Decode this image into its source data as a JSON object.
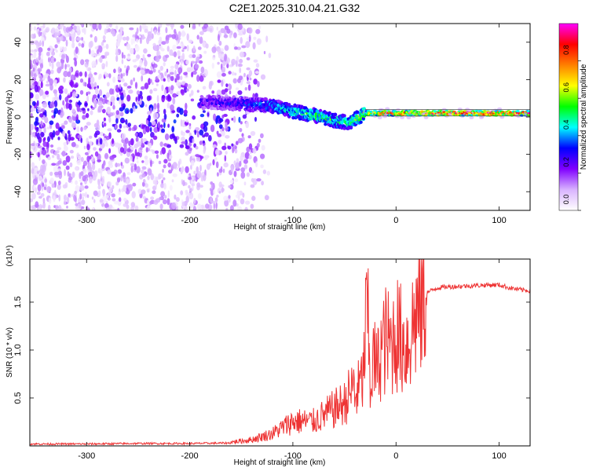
{
  "title": "C2E1.2025.310.04.21.G32",
  "chart_data": [
    {
      "type": "heatmap",
      "xlabel": "Height of straight line (km)",
      "ylabel": "Frequency (Hz)",
      "xlim": [
        -355,
        130
      ],
      "ylim": [
        -50,
        50
      ],
      "xticks": [
        -300,
        -200,
        -100,
        0,
        100
      ],
      "yticks": [
        -40,
        -20,
        0,
        20,
        40
      ],
      "grid": false,
      "colorbar": {
        "label": "Normalized spectral amplitude",
        "range": [
          0.0,
          1.0
        ],
        "ticks": [
          "0.0",
          "0.2",
          "0.4",
          "0.6",
          "0.8"
        ],
        "colormap": [
          "#ffffff",
          "#d9b3ff",
          "#8000ff",
          "#0000ff",
          "#00ffff",
          "#00ff00",
          "#ffff00",
          "#ff8000",
          "#ff0000",
          "#ff00ff"
        ]
      },
      "features": {
        "noise_region_x": [
          -355,
          -150
        ],
        "noise_amplitude": 0.25,
        "signal_track": {
          "x": [
            -180,
            -150,
            -120,
            -100,
            -80,
            -60,
            -45,
            -30,
            0,
            50,
            130
          ],
          "frequency": [
            8,
            7,
            6,
            3,
            1,
            -2,
            -3,
            2,
            2,
            2,
            2
          ],
          "amplitude": [
            0.3,
            0.35,
            0.45,
            0.5,
            0.55,
            0.55,
            0.5,
            0.7,
            0.85,
            0.9,
            0.9
          ]
        }
      }
    },
    {
      "type": "line",
      "xlabel": "Height of straight line (km)",
      "ylabel": "SNR (10 * v/v)",
      "y_multiplier": "(x10⁴)",
      "xlim": [
        -355,
        130
      ],
      "ylim": [
        0,
        1.95
      ],
      "xticks": [
        -300,
        -200,
        -100,
        0,
        100
      ],
      "yticks": [
        "0.5",
        "1.0",
        "1.5"
      ],
      "grid": false,
      "line_color": "#ee3333",
      "series": [
        {
          "x": [
            -355,
            -300,
            -250,
            -200,
            -160,
            -140,
            -120,
            -100,
            -80,
            -60,
            -50,
            -40,
            -32,
            -28,
            -25,
            -22,
            -18,
            -15,
            -10,
            -5,
            0,
            5,
            10,
            15,
            20,
            30,
            40,
            50,
            70,
            90,
            100,
            110,
            120,
            130
          ],
          "values": [
            0.02,
            0.02,
            0.025,
            0.025,
            0.03,
            0.05,
            0.1,
            0.2,
            0.2,
            0.3,
            0.35,
            0.5,
            0.7,
            1.5,
            0.6,
            0.9,
            0.8,
            1.0,
            1.1,
            1.05,
            1.2,
            1.1,
            1.05,
            1.2,
            1.4,
            1.6,
            1.65,
            1.66,
            1.67,
            1.68,
            1.68,
            1.65,
            1.63,
            1.62
          ]
        }
      ]
    }
  ]
}
